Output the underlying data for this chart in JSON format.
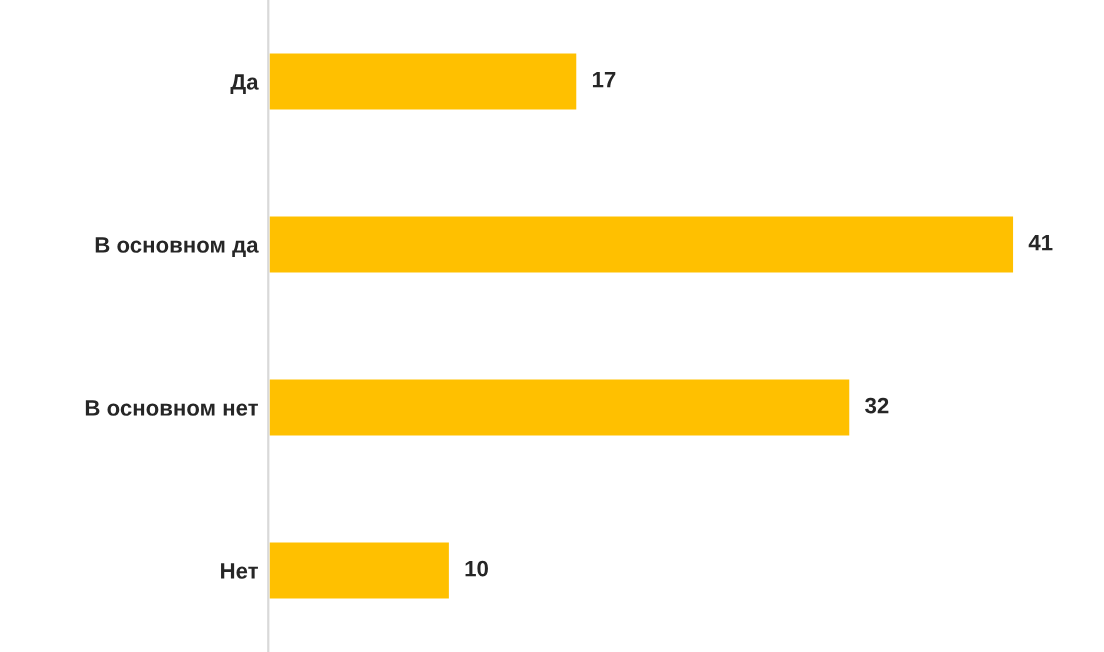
{
  "chart_data": {
    "type": "bar",
    "orientation": "horizontal",
    "categories": [
      "Да",
      "В основном да",
      "В основном нет",
      "Нет"
    ],
    "values": [
      17,
      41,
      32,
      10
    ],
    "color": "#ffc000",
    "data_labels": true,
    "tick_labels": "y",
    "grid": false,
    "legend": false
  }
}
